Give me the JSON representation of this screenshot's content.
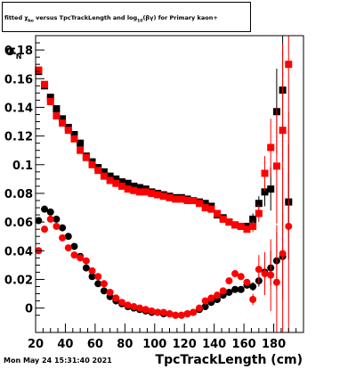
{
  "page": {
    "title_parts": {
      "prefix": "fitted ",
      "chi": "χ",
      "chi_sub": "bo",
      "mid": " versus TpcTrackLength and log",
      "log_sub": "10",
      "suffix": "(βγ) for Primary kaon+"
    },
    "ylabel_main": "σ",
    "ylabel_sub": "N",
    "xlabel": "TpcTrackLength (cm)",
    "timestamp": "Mon May 24 15:31:40 2021"
  },
  "chart_data": {
    "type": "scatter",
    "title": "fitted χbo versus TpcTrackLength and log10(βγ) for Primary kaon+",
    "xlabel": "TpcTrackLength (cm)",
    "ylabel": "σN",
    "xlim": [
      20,
      200
    ],
    "ylim": [
      -0.017,
      0.19
    ],
    "xticks": [
      20,
      40,
      60,
      80,
      100,
      120,
      140,
      160,
      180
    ],
    "yticks": [
      0,
      0.02,
      0.04,
      0.06,
      0.08,
      0.1,
      0.12,
      0.14,
      0.16,
      0.18
    ],
    "ytick_labels": [
      "0",
      "0.02",
      "0.04",
      "0.06",
      "0.08",
      "0.1",
      "0.12",
      "0.14",
      "0.16",
      "0.18"
    ],
    "grid": false,
    "series": [
      {
        "marker": "square",
        "color": "#000000",
        "x": [
          22,
          26,
          30,
          34,
          38,
          42,
          46,
          50,
          54,
          58,
          62,
          66,
          70,
          74,
          78,
          82,
          86,
          90,
          94,
          98,
          102,
          106,
          110,
          114,
          118,
          122,
          126,
          130,
          134,
          138,
          142,
          146,
          150,
          154,
          158,
          162,
          166,
          170,
          174,
          178,
          182,
          186,
          190
        ],
        "y": [
          0.165,
          0.155,
          0.147,
          0.139,
          0.132,
          0.126,
          0.121,
          0.115,
          0.106,
          0.102,
          0.098,
          0.095,
          0.092,
          0.09,
          0.088,
          0.087,
          0.085,
          0.084,
          0.083,
          0.081,
          0.08,
          0.079,
          0.078,
          0.077,
          0.077,
          0.076,
          0.075,
          0.074,
          0.073,
          0.071,
          0.065,
          0.063,
          0.06,
          0.058,
          0.057,
          0.057,
          0.062,
          0.073,
          0.081,
          0.083,
          0.137,
          0.152,
          0.074
        ],
        "yerr": [
          0,
          0,
          0,
          0,
          0,
          0,
          0,
          0,
          0,
          0,
          0,
          0,
          0,
          0,
          0,
          0,
          0,
          0,
          0,
          0,
          0,
          0,
          0,
          0,
          0,
          0,
          0,
          0,
          0,
          0,
          0,
          0,
          0,
          0,
          0,
          0,
          0.004,
          0.005,
          0.01,
          0.015,
          0.03,
          0.05,
          0.02
        ]
      },
      {
        "marker": "square",
        "color": "#ff0000",
        "x": [
          22,
          26,
          30,
          34,
          38,
          42,
          46,
          50,
          54,
          58,
          62,
          66,
          70,
          74,
          78,
          82,
          86,
          90,
          94,
          98,
          102,
          106,
          110,
          114,
          118,
          122,
          126,
          130,
          134,
          138,
          142,
          146,
          150,
          154,
          158,
          162,
          166,
          170,
          174,
          178,
          182,
          186,
          190
        ],
        "y": [
          0.166,
          0.156,
          0.144,
          0.134,
          0.129,
          0.124,
          0.118,
          0.11,
          0.105,
          0.1,
          0.096,
          0.092,
          0.089,
          0.087,
          0.085,
          0.083,
          0.082,
          0.081,
          0.081,
          0.08,
          0.079,
          0.078,
          0.077,
          0.076,
          0.076,
          0.075,
          0.075,
          0.073,
          0.07,
          0.069,
          0.066,
          0.062,
          0.06,
          0.058,
          0.057,
          0.055,
          0.057,
          0.066,
          0.094,
          0.112,
          0.099,
          0.124,
          0.17
        ],
        "yerr": [
          0,
          0,
          0,
          0,
          0,
          0,
          0,
          0,
          0,
          0,
          0,
          0,
          0,
          0,
          0,
          0,
          0,
          0,
          0,
          0,
          0,
          0,
          0,
          0,
          0,
          0,
          0,
          0,
          0,
          0,
          0,
          0,
          0,
          0,
          0,
          0,
          0.004,
          0.006,
          0.012,
          0.02,
          0.04,
          0.06,
          0.08
        ]
      },
      {
        "marker": "circle",
        "color": "#000000",
        "x": [
          22,
          26,
          30,
          34,
          38,
          42,
          46,
          50,
          54,
          58,
          62,
          66,
          70,
          74,
          78,
          82,
          86,
          90,
          94,
          98,
          102,
          106,
          110,
          114,
          118,
          122,
          126,
          130,
          134,
          138,
          142,
          146,
          150,
          154,
          158,
          162,
          166,
          170,
          174,
          178,
          182,
          186,
          190
        ],
        "y": [
          0.061,
          0.069,
          0.067,
          0.062,
          0.056,
          0.05,
          0.043,
          0.036,
          0.028,
          0.022,
          0.017,
          0.012,
          0.008,
          0.005,
          0.003,
          0.001,
          0.0,
          -0.001,
          -0.002,
          -0.003,
          -0.003,
          -0.004,
          -0.004,
          -0.005,
          -0.005,
          -0.004,
          -0.003,
          -0.001,
          0.001,
          0.004,
          0.006,
          0.009,
          0.011,
          0.013,
          0.013,
          0.016,
          0.015,
          0.019,
          0.025,
          0.028,
          0.033,
          0.036,
          0.074
        ],
        "yerr": [
          0,
          0,
          0,
          0,
          0,
          0,
          0,
          0,
          0,
          0,
          0,
          0,
          0,
          0,
          0,
          0,
          0,
          0,
          0,
          0,
          0,
          0,
          0,
          0,
          0,
          0,
          0,
          0,
          0,
          0,
          0,
          0,
          0,
          0,
          0,
          0,
          0.003,
          0.004,
          0.008,
          0.012,
          0.02,
          0.03,
          0.04
        ]
      },
      {
        "marker": "circle",
        "color": "#ff0000",
        "x": [
          22,
          26,
          30,
          34,
          38,
          42,
          46,
          50,
          54,
          58,
          62,
          66,
          70,
          74,
          78,
          82,
          86,
          90,
          94,
          98,
          102,
          106,
          110,
          114,
          118,
          122,
          126,
          130,
          134,
          138,
          142,
          146,
          150,
          154,
          158,
          162,
          166,
          170,
          174,
          178,
          182,
          186,
          190
        ],
        "y": [
          0.04,
          0.055,
          0.062,
          0.057,
          0.049,
          0.042,
          0.037,
          0.035,
          0.033,
          0.026,
          0.022,
          0.017,
          0.011,
          0.007,
          0.004,
          0.002,
          0.001,
          0.0,
          -0.001,
          -0.002,
          -0.003,
          -0.003,
          -0.004,
          -0.005,
          -0.005,
          -0.004,
          -0.003,
          0.0,
          0.005,
          0.007,
          0.009,
          0.012,
          0.019,
          0.024,
          0.022,
          0.018,
          0.006,
          0.027,
          0.024,
          0.023,
          0.018,
          0.038,
          0.057
        ],
        "yerr": [
          0,
          0,
          0,
          0,
          0,
          0,
          0,
          0,
          0,
          0,
          0,
          0,
          0,
          0,
          0,
          0,
          0,
          0,
          0,
          0,
          0,
          0,
          0,
          0,
          0,
          0,
          0,
          0,
          0,
          0,
          0,
          0,
          0,
          0,
          0,
          0,
          0.004,
          0.01,
          0.015,
          0.025,
          0.04,
          0.06,
          0.08
        ]
      }
    ]
  }
}
